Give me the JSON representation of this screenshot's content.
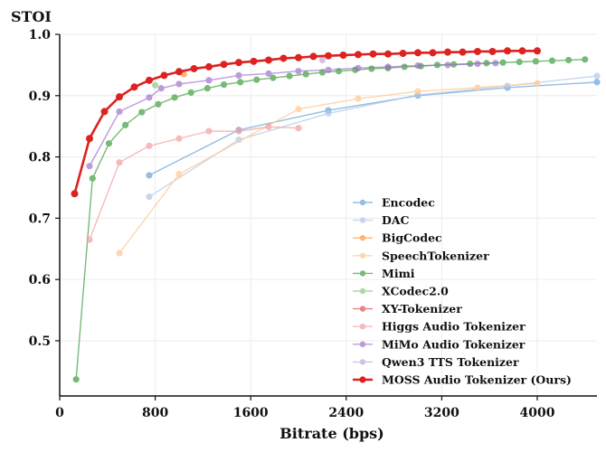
{
  "chart_data": {
    "type": "line",
    "ylabel": "STOI",
    "xlabel": "Bitrate (bps)",
    "xlim": [
      0,
      4500
    ],
    "ylim": [
      0.41,
      1.0
    ],
    "xticks": [
      0,
      800,
      1600,
      2400,
      3200,
      4000
    ],
    "yticks": [
      0.5,
      0.6,
      0.7,
      0.8,
      0.9,
      1.0
    ],
    "xtick_labels": [
      "0",
      "800",
      "1600",
      "2400",
      "3200",
      "4000"
    ],
    "ytick_labels": [
      "0.5",
      "0.6",
      "0.7",
      "0.8",
      "0.9",
      "1.0"
    ],
    "grid": true,
    "legend_position": "bottom-right",
    "series": [
      {
        "name": "Encodec",
        "color": "#5b9bd5",
        "alpha": 0.65,
        "emphasis": false,
        "points": [
          [
            750,
            0.77
          ],
          [
            1500,
            0.844
          ],
          [
            2250,
            0.876
          ],
          [
            3000,
            0.9
          ],
          [
            3750,
            0.913
          ],
          [
            4500,
            0.922
          ]
        ]
      },
      {
        "name": "DAC",
        "color": "#aec7e8",
        "alpha": 0.7,
        "emphasis": false,
        "points": [
          [
            750,
            0.735
          ],
          [
            1500,
            0.828
          ],
          [
            2250,
            0.871
          ],
          [
            3000,
            0.901
          ],
          [
            3750,
            0.916
          ],
          [
            4500,
            0.932
          ]
        ]
      },
      {
        "name": "BigCodec",
        "color": "#ff9f40",
        "alpha": 0.75,
        "emphasis": false,
        "points": [
          [
            1040,
            0.935
          ]
        ]
      },
      {
        "name": "SpeechTokenizer",
        "color": "#ffcc99",
        "alpha": 0.8,
        "emphasis": false,
        "points": [
          [
            500,
            0.643
          ],
          [
            1000,
            0.772
          ],
          [
            2000,
            0.878
          ],
          [
            2500,
            0.895
          ],
          [
            3000,
            0.907
          ],
          [
            3500,
            0.913
          ],
          [
            4000,
            0.92
          ]
        ]
      },
      {
        "name": "Mimi",
        "color": "#55aa55",
        "alpha": 0.8,
        "emphasis": false,
        "points": [
          [
            137.5,
            0.437
          ],
          [
            275,
            0.765
          ],
          [
            412.5,
            0.822
          ],
          [
            550,
            0.852
          ],
          [
            687.5,
            0.873
          ],
          [
            825,
            0.886
          ],
          [
            962.5,
            0.897
          ],
          [
            1100,
            0.905
          ],
          [
            1237.5,
            0.912
          ],
          [
            1375,
            0.918
          ],
          [
            1512.5,
            0.922
          ],
          [
            1650,
            0.926
          ],
          [
            1787.5,
            0.929
          ],
          [
            1925,
            0.932
          ],
          [
            2062.5,
            0.935
          ],
          [
            2200,
            0.938
          ],
          [
            2337.5,
            0.94
          ],
          [
            2475,
            0.942
          ],
          [
            2612.5,
            0.944
          ],
          [
            2750,
            0.945
          ],
          [
            2887.5,
            0.947
          ],
          [
            3025,
            0.948
          ],
          [
            3162.5,
            0.95
          ],
          [
            3300,
            0.951
          ],
          [
            3437.5,
            0.952
          ],
          [
            3575,
            0.953
          ],
          [
            3712.5,
            0.954
          ],
          [
            3850,
            0.955
          ],
          [
            3987.5,
            0.956
          ],
          [
            4125,
            0.957
          ],
          [
            4262.5,
            0.958
          ],
          [
            4400,
            0.959
          ]
        ]
      },
      {
        "name": "XCodec2.0",
        "color": "#9dd68f",
        "alpha": 0.85,
        "emphasis": false,
        "points": [
          [
            800,
            0.917
          ]
        ]
      },
      {
        "name": "XY-Tokenizer",
        "color": "#e35050",
        "alpha": 0.7,
        "emphasis": false,
        "points": [
          [
            1000,
            0.94
          ]
        ]
      },
      {
        "name": "Higgs Audio Tokenizer",
        "color": "#f4a3a3",
        "alpha": 0.75,
        "emphasis": false,
        "points": [
          [
            250,
            0.665
          ],
          [
            500,
            0.791
          ],
          [
            750,
            0.818
          ],
          [
            1000,
            0.83
          ],
          [
            1250,
            0.842
          ],
          [
            1500,
            0.842
          ],
          [
            1750,
            0.849
          ],
          [
            2000,
            0.847
          ]
        ]
      },
      {
        "name": "MiMo Audio Tokenizer",
        "color": "#9a66c8",
        "alpha": 0.65,
        "emphasis": false,
        "points": [
          [
            250,
            0.785
          ],
          [
            500,
            0.874
          ],
          [
            750,
            0.897
          ],
          [
            850,
            0.912
          ],
          [
            1000,
            0.919
          ],
          [
            1250,
            0.925
          ],
          [
            1500,
            0.933
          ],
          [
            1750,
            0.936
          ],
          [
            2000,
            0.94
          ],
          [
            2250,
            0.942
          ],
          [
            2500,
            0.945
          ],
          [
            2750,
            0.947
          ],
          [
            3000,
            0.949
          ],
          [
            3250,
            0.95
          ],
          [
            3500,
            0.952
          ],
          [
            3650,
            0.953
          ]
        ]
      },
      {
        "name": "Qwen3 TTS Tokenizer",
        "color": "#c9b8dc",
        "alpha": 0.85,
        "emphasis": false,
        "points": [
          [
            2200,
            0.958
          ]
        ]
      },
      {
        "name": "MOSS Audio Tokenizer (Ours)",
        "color": "#dd2222",
        "alpha": 1.0,
        "emphasis": true,
        "points": [
          [
            125,
            0.74
          ],
          [
            250,
            0.83
          ],
          [
            375,
            0.874
          ],
          [
            500,
            0.898
          ],
          [
            625,
            0.914
          ],
          [
            750,
            0.925
          ],
          [
            875,
            0.933
          ],
          [
            1000,
            0.939
          ],
          [
            1125,
            0.944
          ],
          [
            1250,
            0.947
          ],
          [
            1375,
            0.951
          ],
          [
            1500,
            0.954
          ],
          [
            1625,
            0.956
          ],
          [
            1750,
            0.958
          ],
          [
            1875,
            0.961
          ],
          [
            2000,
            0.962
          ],
          [
            2125,
            0.964
          ],
          [
            2250,
            0.965
          ],
          [
            2375,
            0.966
          ],
          [
            2500,
            0.967
          ],
          [
            2625,
            0.968
          ],
          [
            2750,
            0.968
          ],
          [
            2875,
            0.969
          ],
          [
            3000,
            0.97
          ],
          [
            3125,
            0.97
          ],
          [
            3250,
            0.971
          ],
          [
            3375,
            0.971
          ],
          [
            3500,
            0.972
          ],
          [
            3625,
            0.972
          ],
          [
            3750,
            0.973
          ],
          [
            3875,
            0.973
          ],
          [
            4000,
            0.973
          ]
        ]
      }
    ]
  }
}
